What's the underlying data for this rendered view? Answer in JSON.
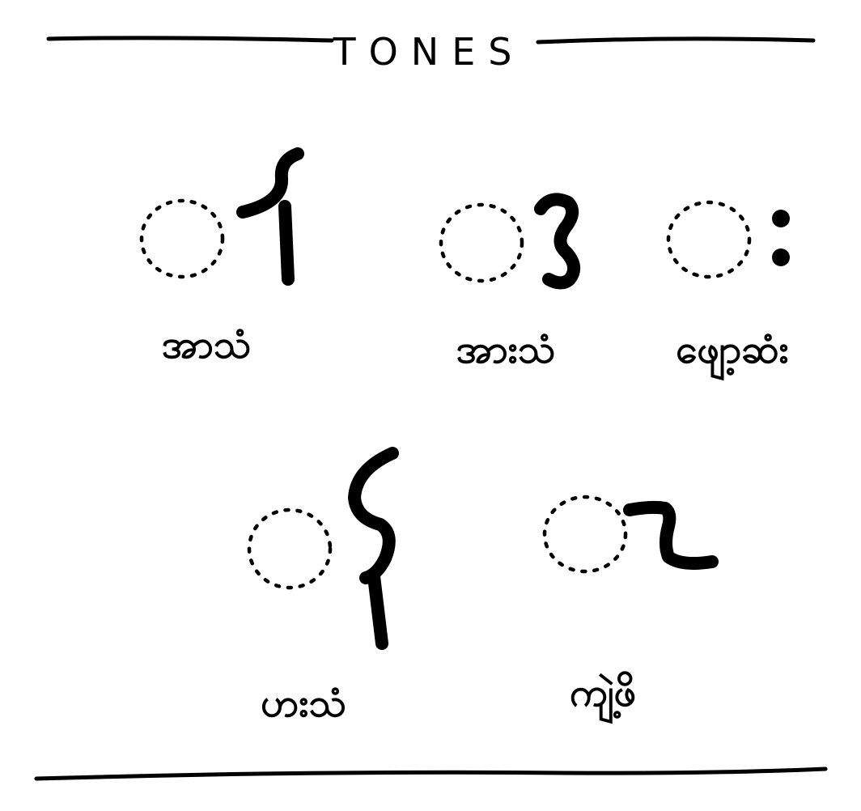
{
  "title": "TONES",
  "tones": [
    {
      "glyph_icon": "tone-mark-aa-icon",
      "label": "အာသံ"
    },
    {
      "glyph_icon": "tone-mark-aa-yay-icon",
      "label": "အားသံ"
    },
    {
      "glyph_icon": "visarga-icon",
      "label": "ဖျော့ဆံး"
    },
    {
      "glyph_icon": "tone-mark-ha-icon",
      "label": "ဟးသံ"
    },
    {
      "glyph_icon": "tone-mark-kya-icon",
      "label": "ကျဲ့ဖိ"
    }
  ],
  "colors": {
    "ink": "#000000",
    "paper": "#ffffff"
  }
}
